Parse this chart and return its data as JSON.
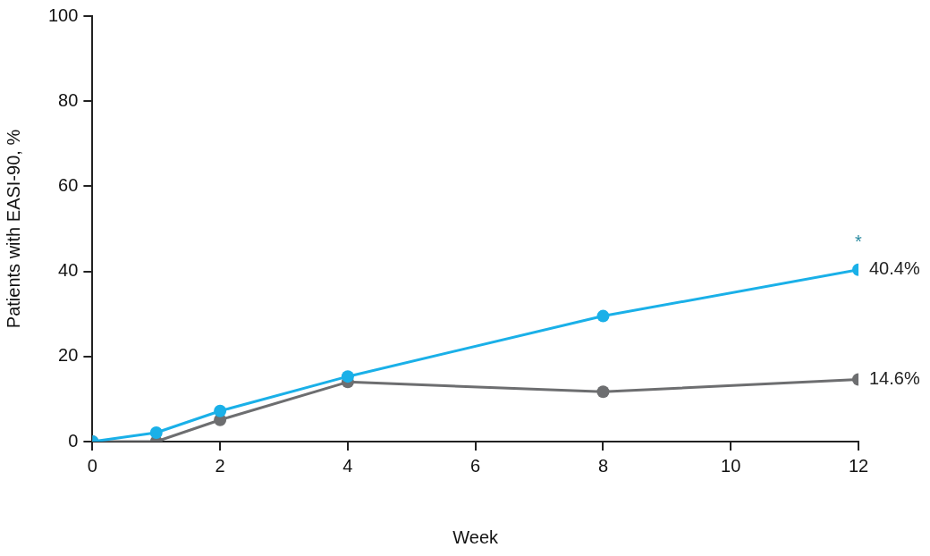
{
  "chart_data": {
    "type": "line",
    "xlabel": "Week",
    "ylabel": "Patients with EASI-90, %",
    "x": [
      0,
      1,
      2,
      4,
      8,
      12
    ],
    "series": [
      {
        "color": "#1ab0e8",
        "values": [
          0,
          2.1,
          7.2,
          15.3,
          29.5,
          40.4
        ],
        "value_labels": [
          null,
          null,
          null,
          null,
          null,
          "40.4%"
        ]
      },
      {
        "color": "#6d6e70",
        "values": [
          0,
          0,
          5.1,
          14.0,
          11.7,
          14.6
        ],
        "value_labels": [
          null,
          null,
          null,
          null,
          null,
          "14.6%"
        ]
      }
    ],
    "annotations": [
      "*"
    ],
    "xlim": [
      0,
      12
    ],
    "xticks": [
      0,
      2,
      4,
      6,
      8,
      10,
      12
    ],
    "ylim": [
      0,
      100
    ],
    "yticks": [
      0,
      20,
      40,
      60,
      80,
      100
    ],
    "grid": false,
    "legend": false,
    "marker": "circle",
    "line_style": "solid"
  }
}
